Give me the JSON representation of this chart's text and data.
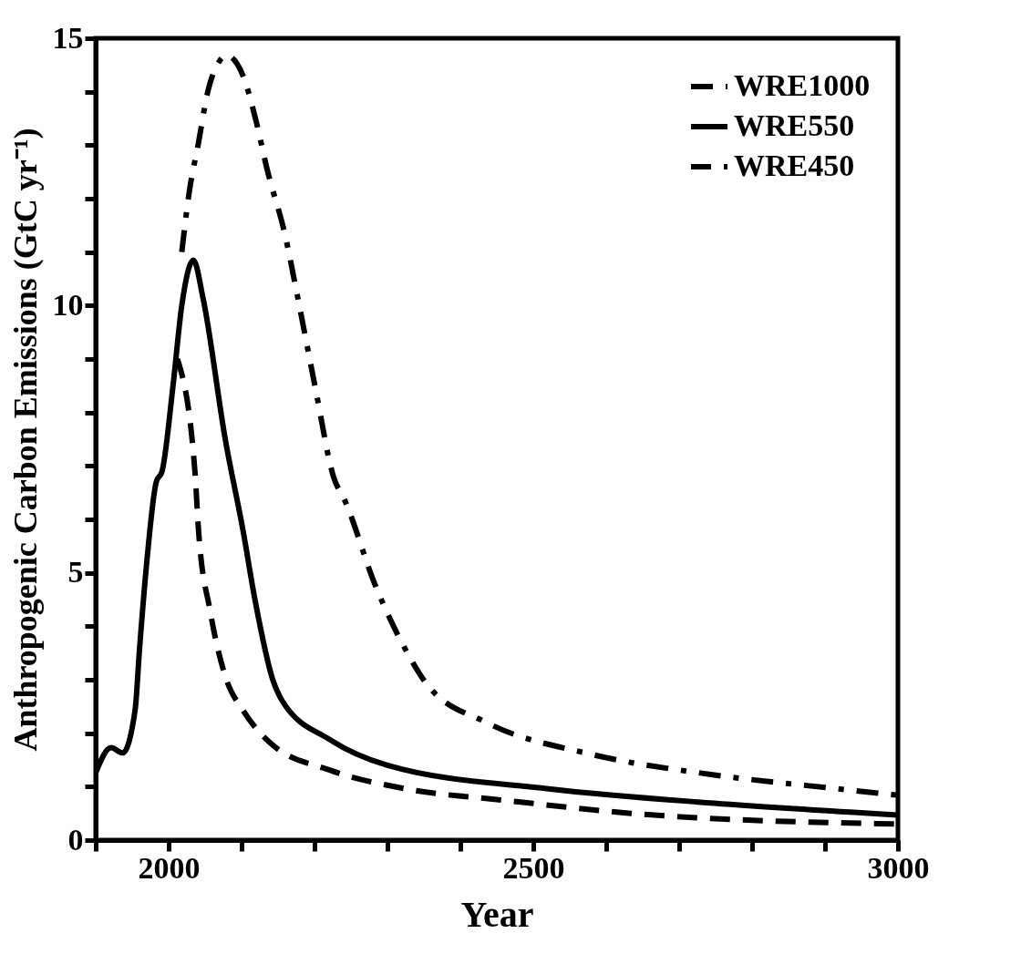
{
  "chart_data": {
    "type": "line",
    "xlabel": "Year",
    "ylabel": "Anthropogenic Carbon Emissions (GtC yr⁻¹)",
    "xlim": [
      1900,
      3000
    ],
    "ylim": [
      0,
      15
    ],
    "xticks": [
      {
        "value": 1900,
        "label": null
      },
      2000,
      {
        "value": 2100,
        "label": null
      },
      {
        "value": 2200,
        "label": null
      },
      {
        "value": 2300,
        "label": null
      },
      {
        "value": 2400,
        "label": null
      },
      2500,
      {
        "value": 2600,
        "label": null
      },
      {
        "value": 2700,
        "label": null
      },
      {
        "value": 2800,
        "label": null
      },
      {
        "value": 2900,
        "label": null
      },
      3000
    ],
    "yticks": [
      0,
      {
        "value": 1,
        "label": null
      },
      {
        "value": 2,
        "label": null
      },
      {
        "value": 3,
        "label": null
      },
      {
        "value": 4,
        "label": null
      },
      5,
      {
        "value": 6,
        "label": null
      },
      {
        "value": 7,
        "label": null
      },
      {
        "value": 8,
        "label": null
      },
      {
        "value": 9,
        "label": null
      },
      10,
      {
        "value": 11,
        "label": null
      },
      {
        "value": 12,
        "label": null
      },
      {
        "value": 13,
        "label": null
      },
      {
        "value": 14,
        "label": null
      },
      15
    ],
    "grid": false,
    "legend": "top right",
    "marker": "none",
    "series": [
      {
        "name": "WRE1000",
        "color": "#000000",
        "line_style": "dashdot",
        "x": [
          2018,
          2028,
          2041,
          2053,
          2069,
          2079,
          2102,
          2119,
          2135,
          2160,
          2177,
          2201,
          2226,
          2242,
          2283,
          2325,
          2355,
          2436,
          2578,
          2748,
          2917,
          3000
        ],
        "values": [
          11.0,
          12.1,
          13.05,
          13.96,
          14.56,
          14.68,
          14.3,
          13.5,
          12.55,
          11.3,
          10.15,
          8.47,
          6.8,
          6.34,
          4.78,
          3.56,
          2.9,
          2.2,
          1.61,
          1.22,
          0.96,
          0.84
        ]
      },
      {
        "name": "WRE550",
        "color": "#000000",
        "line_style": "solid",
        "x": [
          1900,
          1921,
          1937,
          1954,
          1960,
          1970,
          1983,
          1991,
          2006,
          2018,
          2034,
          2047,
          2078,
          2102,
          2119,
          2143,
          2156,
          2221,
          2300,
          2521,
          2748,
          3000
        ],
        "values": [
          1.26,
          1.73,
          1.63,
          2.43,
          3.56,
          5.2,
          6.7,
          6.9,
          8.5,
          10.0,
          10.85,
          10.15,
          7.47,
          5.79,
          4.45,
          2.99,
          2.6,
          1.88,
          1.4,
          0.96,
          0.69,
          0.47
        ]
      },
      {
        "name": "WRE450",
        "color": "#000000",
        "line_style": "dashed",
        "x": [
          2012,
          2036,
          2041,
          2057,
          2078,
          2102,
          2140,
          2221,
          2325,
          2464,
          2634,
          3000
        ],
        "values": [
          9.0,
          6.9,
          5.79,
          4.28,
          3.05,
          2.43,
          1.81,
          1.31,
          0.96,
          0.74,
          0.5,
          0.3
        ]
      }
    ]
  }
}
